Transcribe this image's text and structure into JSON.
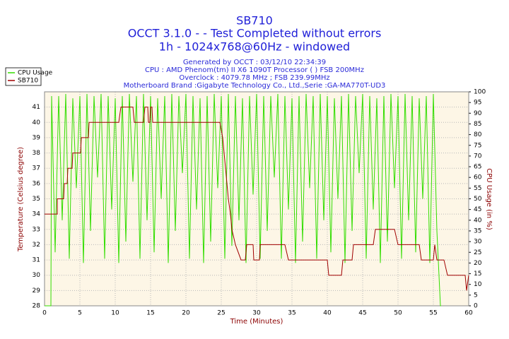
{
  "chart_data": {
    "type": "line",
    "title": "SB710",
    "subtitle": [
      "OCCT 3.1.0 -  - Test Completed without errors",
      "1h - 1024x768@60Hz - windowed"
    ],
    "info": [
      "Generated by OCCT : 03/12/10 22:34:39",
      "CPU : AMD Phenom(tm) II X6 1090T Processor (  ) FSB 200MHz",
      "Overclock : 4079.78 MHz ; FSB 239.99MHz",
      "Motherboard Brand :Gigabyte Technology Co., Ltd.,Serie :GA-MA770T-UD3"
    ],
    "xlabel": "Time (Minutes)",
    "ylabel": "Temperature (Celsius degree)",
    "y2label": "CPU Usage (in %)",
    "xlim": [
      0,
      60
    ],
    "xticks": [
      0,
      5,
      10,
      15,
      20,
      25,
      30,
      35,
      40,
      45,
      50,
      55,
      60
    ],
    "ylim": [
      28,
      42
    ],
    "yticks": [
      28,
      29,
      30,
      31,
      32,
      33,
      34,
      35,
      36,
      37,
      38,
      39,
      40,
      41
    ],
    "y2lim": [
      0,
      100
    ],
    "y2ticks": [
      0,
      5,
      10,
      15,
      20,
      25,
      30,
      35,
      40,
      45,
      50,
      55,
      60,
      65,
      70,
      75,
      80,
      85,
      90,
      95,
      100
    ],
    "grid": true,
    "legend": "top-left",
    "series": [
      {
        "name": "CPU Usage",
        "color": "#33dd00",
        "axis": "y2",
        "x": [
          0,
          0.9,
          1,
          1.5,
          2,
          2.5,
          3,
          3.5,
          4,
          4.5,
          5,
          5.5,
          6,
          6.5,
          7,
          7.5,
          8,
          8.5,
          9,
          9.5,
          10,
          10.5,
          11,
          11.5,
          12,
          12.5,
          13,
          13.5,
          14,
          14.5,
          15,
          15.5,
          16,
          16.5,
          17,
          17.5,
          18,
          18.5,
          19,
          19.5,
          20,
          20.5,
          21,
          21.5,
          22,
          22.5,
          23,
          23.5,
          24,
          24.5,
          25,
          25.5,
          26,
          26.5,
          27,
          27.5,
          28,
          28.5,
          29,
          29.5,
          30,
          30.5,
          31,
          31.5,
          32,
          32.5,
          33,
          33.5,
          34,
          34.5,
          35,
          35.5,
          36,
          36.5,
          37,
          37.5,
          38,
          38.5,
          39,
          39.5,
          40,
          40.5,
          41,
          41.5,
          42,
          42.5,
          43,
          43.5,
          44,
          44.5,
          45,
          45.5,
          46,
          46.5,
          47,
          47.5,
          48,
          48.5,
          49,
          49.5,
          50,
          50.5,
          51,
          51.5,
          52,
          52.5,
          53,
          53.5,
          54,
          54.5,
          55,
          55.5,
          56,
          56.1
        ],
        "values": [
          0,
          0,
          98,
          25,
          98,
          40,
          99,
          22,
          97,
          55,
          98,
          20,
          99,
          35,
          98,
          60,
          99,
          22,
          98,
          45,
          97,
          20,
          98,
          30,
          99,
          58,
          98,
          22,
          99,
          40,
          98,
          25,
          97,
          50,
          98,
          20,
          99,
          35,
          98,
          62,
          99,
          22,
          98,
          45,
          97,
          20,
          98,
          30,
          99,
          55,
          98,
          22,
          99,
          28,
          98,
          40,
          97,
          20,
          98,
          52,
          99,
          22,
          98,
          35,
          98,
          60,
          99,
          22,
          98,
          45,
          97,
          20,
          98,
          30,
          99,
          55,
          98,
          22,
          99,
          40,
          98,
          25,
          97,
          50,
          98,
          20,
          99,
          35,
          98,
          62,
          99,
          22,
          98,
          45,
          97,
          20,
          98,
          30,
          99,
          55,
          98,
          22,
          99,
          40,
          98,
          25,
          97,
          50,
          98,
          20,
          99,
          35,
          0,
          0
        ]
      },
      {
        "name": "SB710",
        "color": "#a00000",
        "axis": "y",
        "x": [
          0,
          1.8,
          1.8,
          2.7,
          2.8,
          3.2,
          3.3,
          3.9,
          4.0,
          5.1,
          5.2,
          6.2,
          6.3,
          10.5,
          10.8,
          12.5,
          12.7,
          14.0,
          14.2,
          14.6,
          14.7,
          14.9,
          15.0,
          15.2,
          15.3,
          24.8,
          25.2,
          25.4,
          25.6,
          25.8,
          26.0,
          26.3,
          26.5,
          27.0,
          27.8,
          28.4,
          28.6,
          29.5,
          29.6,
          30.4,
          30.5,
          34.0,
          34.5,
          40.0,
          40.2,
          42.0,
          42.2,
          43.5,
          43.7,
          46.5,
          46.8,
          49.5,
          50.0,
          53.0,
          53.3,
          55.0,
          55.2,
          55.5,
          56.5,
          57.0,
          59.5,
          59.7,
          60
        ],
        "values": [
          34,
          34,
          35,
          35,
          36,
          36,
          37,
          37,
          38,
          38,
          39,
          39,
          40,
          40,
          41,
          41,
          40,
          40,
          41,
          41,
          40,
          40,
          41,
          41,
          40,
          40,
          39,
          38,
          37,
          36,
          35,
          34,
          33,
          32,
          31,
          31,
          32,
          32,
          31,
          31,
          32,
          32,
          31,
          31,
          30,
          30,
          31,
          31,
          32,
          32,
          33,
          33,
          32,
          32,
          31,
          31,
          32,
          31,
          31,
          30,
          30,
          29,
          30
        ]
      }
    ]
  }
}
